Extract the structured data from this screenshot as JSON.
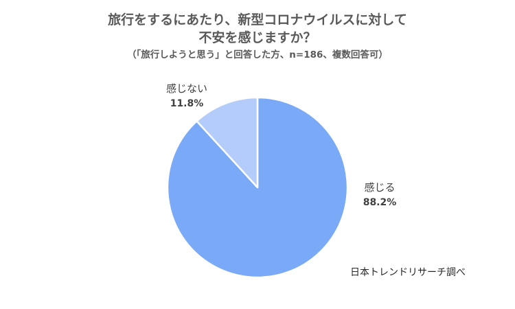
{
  "header": {
    "title_line1": "旅行をするにあたり、新型コロナウイルスに対して",
    "title_line2": "不安を感じますか？",
    "subtitle": "（「旅行しようと思う」と回答した方、n=186、複数回答可）"
  },
  "chart_data": {
    "type": "pie",
    "title": "旅行をするにあたり、新型コロナウイルスに対して不安を感じますか？",
    "subtitle": "（「旅行しようと思う」と回答した方、n=186、複数回答可）",
    "start_angle_deg": 0,
    "direction": "clockwise",
    "slices": [
      {
        "label": "感じる",
        "value": 88.2,
        "value_label": "88.2%",
        "color": "#79a9f7"
      },
      {
        "label": "感じない",
        "value": 11.8,
        "value_label": "11.8%",
        "color": "#b3ccfa"
      }
    ]
  },
  "footer": {
    "source": "日本トレンドリサーチ調べ"
  }
}
